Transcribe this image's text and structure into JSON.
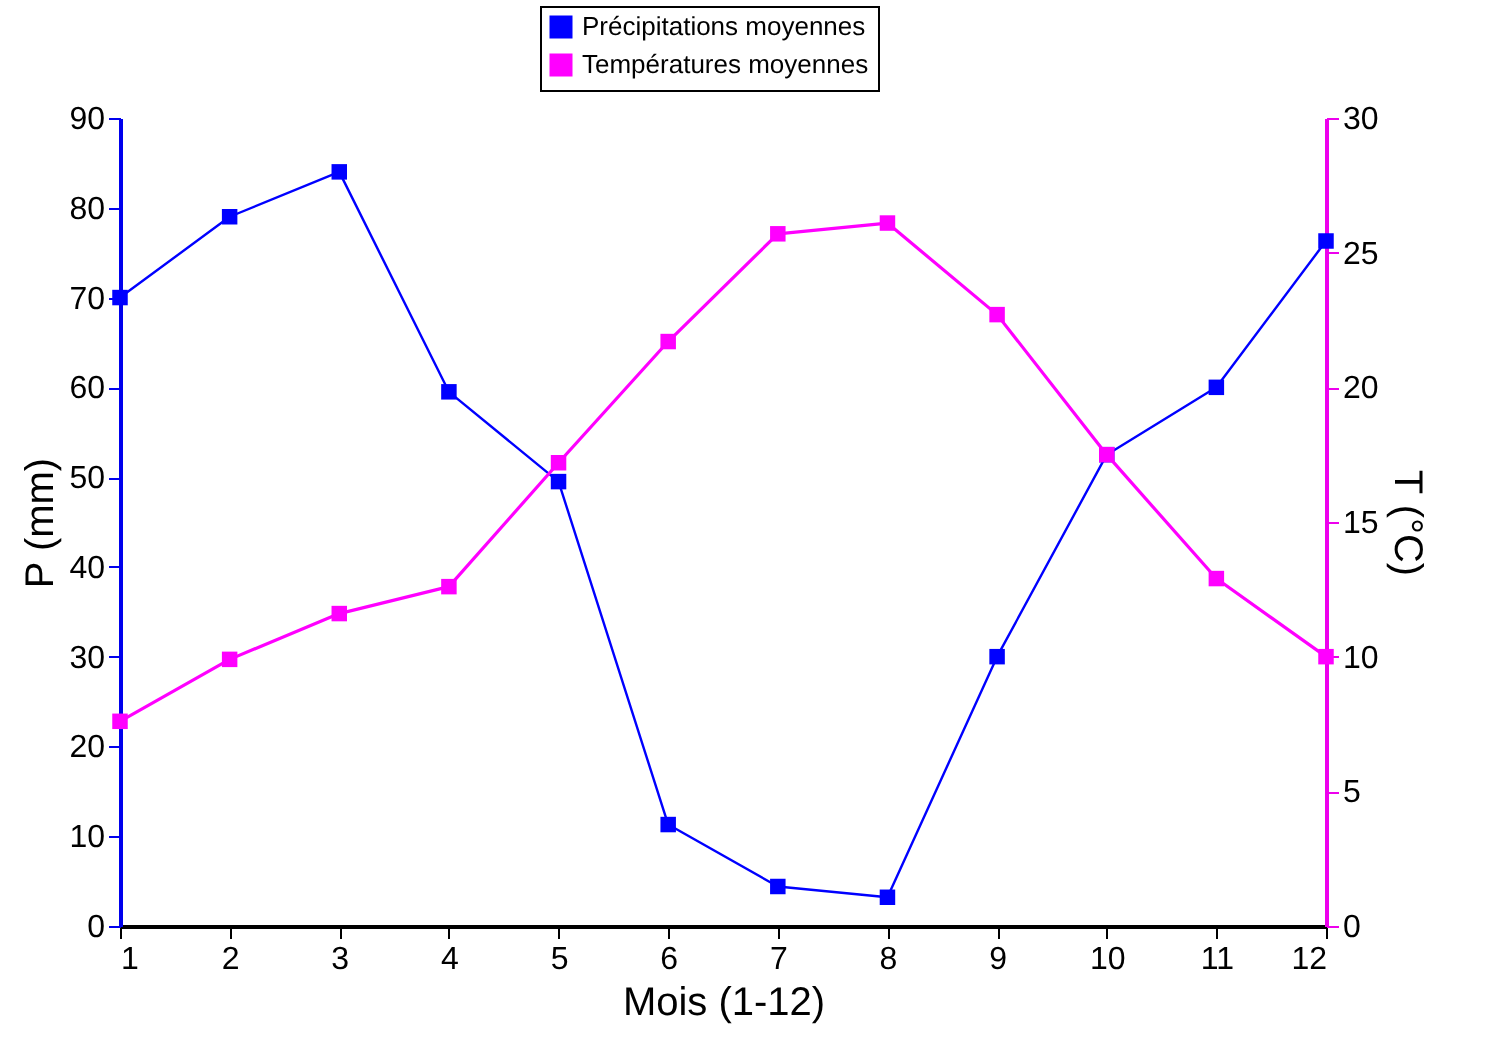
{
  "chart_data": {
    "type": "line",
    "xlabel": "Mois (1-12)",
    "ylabel": "P (mm)",
    "y2label": "T (°C)",
    "x": [
      1,
      2,
      3,
      4,
      5,
      6,
      7,
      8,
      9,
      10,
      11,
      12
    ],
    "series": [
      {
        "name": "Précipitations moyennes",
        "color": "#0000ff",
        "values": [
          70,
          79,
          84,
          59.5,
          49.5,
          11.3,
          4.4,
          3.2,
          30,
          52.5,
          60,
          76.3
        ]
      },
      {
        "name": "Températures moyennes",
        "color": "#ff00ff",
        "axis": "y2",
        "values": [
          7.6,
          9.9,
          11.6,
          12.6,
          17.2,
          21.7,
          25.7,
          26.1,
          22.7,
          17.5,
          12.9,
          10.0
        ]
      }
    ],
    "xlim": [
      1,
      12
    ],
    "xticks": [
      1,
      2,
      3,
      4,
      5,
      6,
      7,
      8,
      9,
      10,
      11,
      12
    ],
    "ylim": [
      0,
      90
    ],
    "yticks": [
      0,
      10,
      20,
      30,
      40,
      50,
      60,
      70,
      80,
      90
    ],
    "y2lim": [
      0,
      30
    ],
    "y2ticks": [
      0,
      5,
      10,
      15,
      20,
      25,
      30
    ],
    "marker": "square",
    "line_style": "solid",
    "legend": "top",
    "grid": false
  }
}
